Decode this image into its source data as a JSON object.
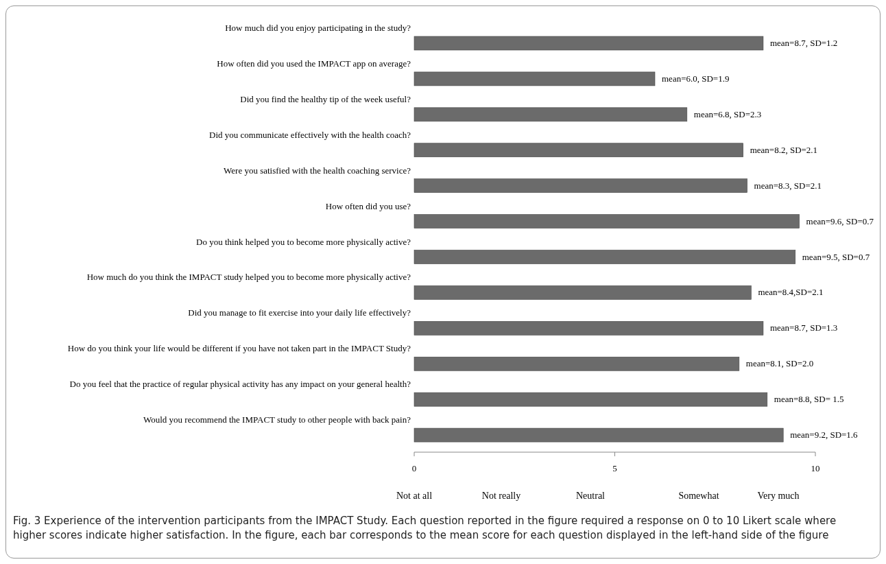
{
  "chart_data": {
    "type": "bar",
    "orientation": "horizontal",
    "categories": [
      "How much did you enjoy participating in the study?",
      "How often did you used the IMPACT app on average?",
      "Did you find the healthy tip of the week useful?",
      "Did you communicate effectively with the health coach?",
      "Were you satisfied with the health coaching service?",
      "How often did you use?",
      "Do you think helped you to become more physically active?",
      "How much do you think the IMPACT study helped you to become more physically active?",
      "Did you manage to fit exercise into your daily life effectively?",
      "How do you think your life would be different if you have not taken part in the IMPACT Study?",
      "Do you feel that the practice of regular physical activity has any impact on your general health?",
      "Would you recommend the IMPACT study to other people with back pain?"
    ],
    "values": [
      8.7,
      6.0,
      6.8,
      8.2,
      8.3,
      9.6,
      9.5,
      8.4,
      8.7,
      8.1,
      8.8,
      9.2
    ],
    "value_labels": [
      "mean=8.7, SD=1.2",
      "mean=6.0, SD=1.9",
      "mean=6.8, SD=2.3",
      "mean=8.2, SD=2.1",
      "mean=8.3, SD=2.1",
      "mean=9.6, SD=0.7",
      "mean=9.5, SD=0.7",
      "mean=8.4,SD=2.1",
      "mean=8.7, SD=1.3",
      "mean=8.1, SD=2.0",
      "mean=8.8, SD= 1.5",
      "mean=9.2, SD=1.6"
    ],
    "color": "#6b6b6b",
    "xlim": [
      0,
      10
    ],
    "xticks": [
      0,
      5,
      10
    ],
    "annotations": [
      "Not at all",
      "Not really",
      "Neutral",
      "Somewhat",
      "Very much",
      "Fig. 3 Experience of the intervention participants from the IMPACT Study. Each question reported in the figure required a response on 0 to 10 Likert scale where higher scores indicate higher satisfaction. In the figure, each bar corresponds to the mean score for each question displayed in the left-hand side of the figure"
    ]
  }
}
